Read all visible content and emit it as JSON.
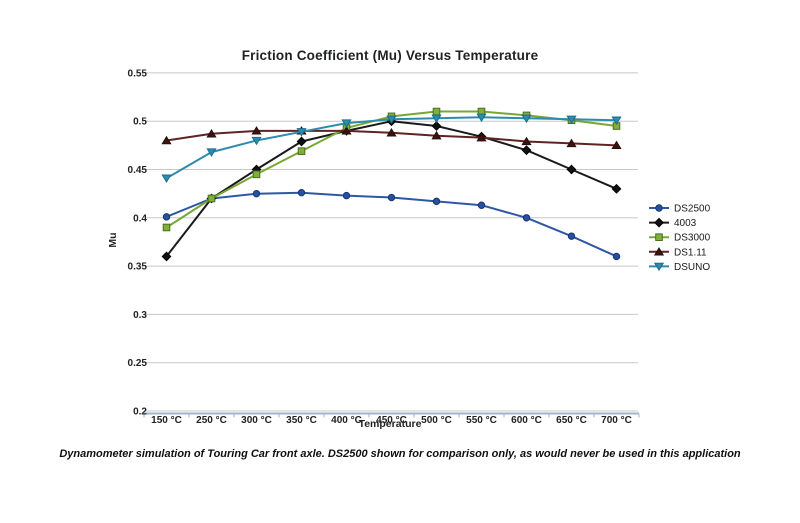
{
  "page": {
    "background": "#ffffff",
    "caption": "Dynamometer simulation of Touring Car front axle. DS2500 shown for comparison only, as would never be used in this application"
  },
  "chart_data": {
    "type": "line",
    "title": "Friction Coefficient (Mu) Versus Temperature",
    "xlabel": "Temperature",
    "ylabel": "Mu",
    "categories": [
      "150 °C",
      "250 °C",
      "300 °C",
      "350 °C",
      "400 °C",
      "450 °C",
      "500 °C",
      "550 °C",
      "600 °C",
      "650 °C",
      "700 °C"
    ],
    "y_ticks": [
      0.2,
      0.25,
      0.3,
      0.35,
      0.4,
      0.45,
      0.5,
      0.55
    ],
    "ylim": [
      0.2,
      0.55
    ],
    "grid": true,
    "legend_position": "right",
    "grid_color": "#c8c8c8",
    "axis_color": "#9eb6ce",
    "tick_label_color": "#222222",
    "series": [
      {
        "name": "DS2500",
        "marker": "circle",
        "line_color": "#2e57a5",
        "marker_fill": "#2650a0",
        "marker_stroke": "#17356e",
        "values": [
          0.401,
          0.42,
          0.425,
          0.426,
          0.423,
          0.421,
          0.417,
          0.413,
          0.4,
          0.381,
          0.36
        ]
      },
      {
        "name": "4003",
        "marker": "diamond",
        "line_color": "#1a1a1a",
        "marker_fill": "#111111",
        "marker_stroke": "#000000",
        "values": [
          0.36,
          0.42,
          0.45,
          0.479,
          0.49,
          0.5,
          0.495,
          0.484,
          0.47,
          0.45,
          0.43
        ]
      },
      {
        "name": "DS3000",
        "marker": "square",
        "line_color": "#78a834",
        "marker_fill": "#7fb03a",
        "marker_stroke": "#4c6e1c",
        "values": [
          0.39,
          0.42,
          0.445,
          0.469,
          0.493,
          0.505,
          0.51,
          0.51,
          0.506,
          0.501,
          0.495
        ]
      },
      {
        "name": "DS1.11",
        "marker": "triangle-up",
        "line_color": "#5e2423",
        "marker_fill": "#3b1412",
        "marker_stroke": "#2a0d0c",
        "values": [
          0.48,
          0.487,
          0.49,
          0.49,
          0.49,
          0.488,
          0.485,
          0.483,
          0.479,
          0.477,
          0.475
        ]
      },
      {
        "name": "DSUNO",
        "marker": "triangle-down",
        "line_color": "#2f8bae",
        "marker_fill": "#2f8bae",
        "marker_stroke": "#176e8f",
        "values": [
          0.441,
          0.468,
          0.48,
          0.489,
          0.498,
          0.502,
          0.503,
          0.504,
          0.503,
          0.502,
          0.501
        ]
      }
    ]
  }
}
